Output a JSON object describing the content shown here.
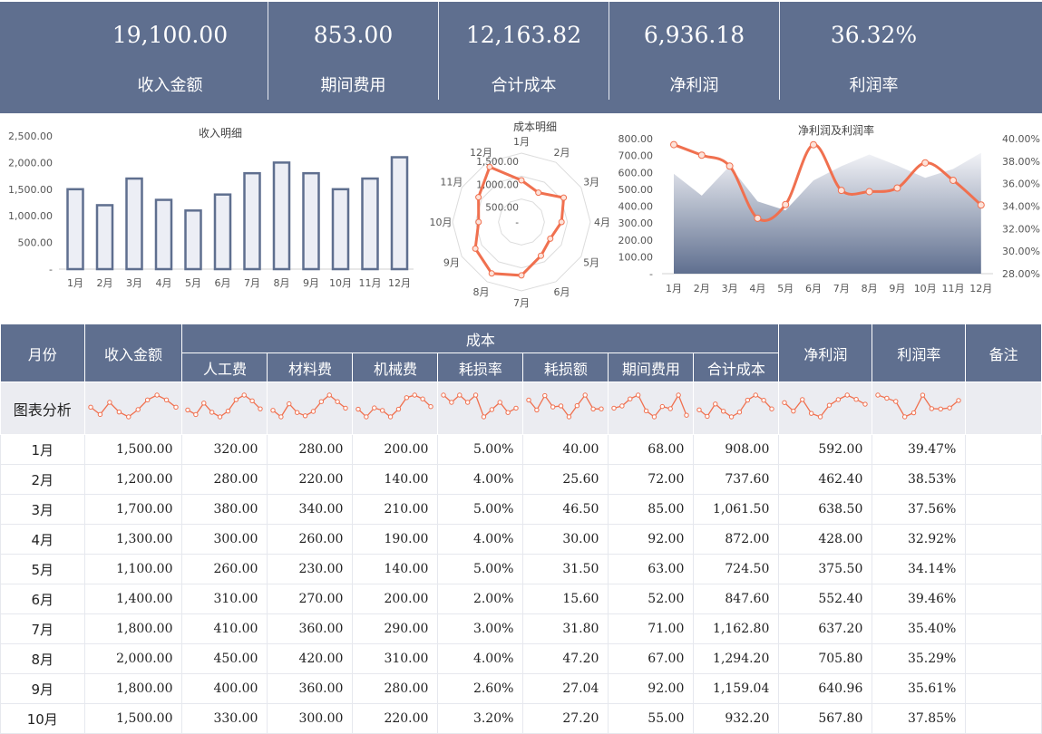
{
  "kpis": [
    {
      "value": "19,100.00",
      "label": "收入金额"
    },
    {
      "value": "853.00",
      "label": "期间费用"
    },
    {
      "value": "12,163.82",
      "label": "合计成本"
    },
    {
      "value": "6,936.18",
      "label": "净利润"
    },
    {
      "value": "36.32%",
      "label": "利润率"
    }
  ],
  "colors": {
    "header": "#5f6f8f",
    "accent": "#f0704f",
    "bar_fill": "#eceef5",
    "bar_stroke": "#5f6f8f"
  },
  "chart_data": [
    {
      "type": "bar",
      "title": "收入明细",
      "categories": [
        "1月",
        "2月",
        "3月",
        "4月",
        "5月",
        "6月",
        "7月",
        "8月",
        "9月",
        "10月",
        "11月",
        "12月"
      ],
      "values": [
        1500,
        1200,
        1700,
        1300,
        1100,
        1400,
        1800,
        2000,
        1800,
        1500,
        1700,
        2100
      ],
      "yticks": [
        "-",
        "500.00",
        "1,000.00",
        "1,500.00",
        "2,000.00",
        "2,500.00"
      ],
      "ylim": [
        0,
        2500
      ],
      "grid": false
    },
    {
      "type": "radar",
      "title": "成本明细",
      "categories": [
        "1月",
        "2月",
        "3月",
        "4月",
        "5月",
        "6月",
        "7月",
        "8月",
        "9月",
        "10月",
        "11月",
        "12月"
      ],
      "values": [
        908,
        737.6,
        1061.5,
        872,
        724.5,
        847.6,
        1162.8,
        1294.2,
        1159.04,
        932.2,
        1080,
        1384.38
      ],
      "rticks": [
        "-",
        "500.00",
        "1,000.00",
        "1,500.00"
      ],
      "rlim": [
        0,
        1500
      ]
    },
    {
      "type": "area+line",
      "title": "净利润及利润率",
      "categories": [
        "1月",
        "2月",
        "3月",
        "4月",
        "5月",
        "6月",
        "7月",
        "8月",
        "9月",
        "10月",
        "11月",
        "12月"
      ],
      "series": [
        {
          "type": "area",
          "axis": "left",
          "values": [
            592,
            462.4,
            638.5,
            428,
            375.5,
            552.4,
            637.2,
            705.8,
            640.96,
            567.8,
            620,
            715.82
          ]
        },
        {
          "type": "line",
          "axis": "right",
          "values": [
            39.47,
            38.53,
            37.56,
            32.92,
            34.14,
            39.46,
            35.4,
            35.29,
            35.61,
            37.85,
            36.3,
            34.1
          ]
        }
      ],
      "yticks_left": [
        "-",
        "100.00",
        "200.00",
        "300.00",
        "400.00",
        "500.00",
        "600.00",
        "700.00",
        "800.00"
      ],
      "ylim_left": [
        0,
        800
      ],
      "yticks_right": [
        "28.00%",
        "30.00%",
        "32.00%",
        "34.00%",
        "36.00%",
        "38.00%",
        "40.00%"
      ],
      "ylim_right": [
        28,
        40
      ]
    }
  ],
  "table": {
    "headers": {
      "month": "月份",
      "revenue": "收入金额",
      "cost_group": "成本",
      "labor": "人工费",
      "material": "材料费",
      "machine": "机械费",
      "loss_rate": "耗损率",
      "loss_amount": "耗损额",
      "period_fee": "期间费用",
      "total_cost": "合计成本",
      "net_profit": "净利润",
      "profit_rate": "利润率",
      "note": "备注"
    },
    "spark_label": "图表分析",
    "rows": [
      [
        "1月",
        "1,500.00",
        "320.00",
        "280.00",
        "200.00",
        "5.00%",
        "40.00",
        "68.00",
        "908.00",
        "592.00",
        "39.47%",
        ""
      ],
      [
        "2月",
        "1,200.00",
        "280.00",
        "220.00",
        "140.00",
        "4.00%",
        "25.60",
        "72.00",
        "737.60",
        "462.40",
        "38.53%",
        ""
      ],
      [
        "3月",
        "1,700.00",
        "380.00",
        "340.00",
        "210.00",
        "5.00%",
        "46.50",
        "85.00",
        "1,061.50",
        "638.50",
        "37.56%",
        ""
      ],
      [
        "4月",
        "1,300.00",
        "300.00",
        "260.00",
        "190.00",
        "4.00%",
        "30.00",
        "92.00",
        "872.00",
        "428.00",
        "32.92%",
        ""
      ],
      [
        "5月",
        "1,100.00",
        "260.00",
        "230.00",
        "140.00",
        "5.00%",
        "31.50",
        "63.00",
        "724.50",
        "375.50",
        "34.14%",
        ""
      ],
      [
        "6月",
        "1,400.00",
        "310.00",
        "270.00",
        "200.00",
        "2.00%",
        "15.60",
        "52.00",
        "847.60",
        "552.40",
        "39.46%",
        ""
      ],
      [
        "7月",
        "1,800.00",
        "410.00",
        "360.00",
        "290.00",
        "3.00%",
        "31.80",
        "71.00",
        "1,162.80",
        "637.20",
        "35.40%",
        ""
      ],
      [
        "8月",
        "2,000.00",
        "450.00",
        "420.00",
        "310.00",
        "4.00%",
        "47.20",
        "67.00",
        "1,294.20",
        "705.80",
        "35.29%",
        ""
      ],
      [
        "9月",
        "1,800.00",
        "400.00",
        "360.00",
        "280.00",
        "2.60%",
        "27.04",
        "92.00",
        "1,159.04",
        "640.96",
        "35.61%",
        ""
      ],
      [
        "10月",
        "1,500.00",
        "330.00",
        "300.00",
        "220.00",
        "3.20%",
        "27.20",
        "55.00",
        "932.20",
        "567.80",
        "37.85%",
        ""
      ]
    ]
  }
}
